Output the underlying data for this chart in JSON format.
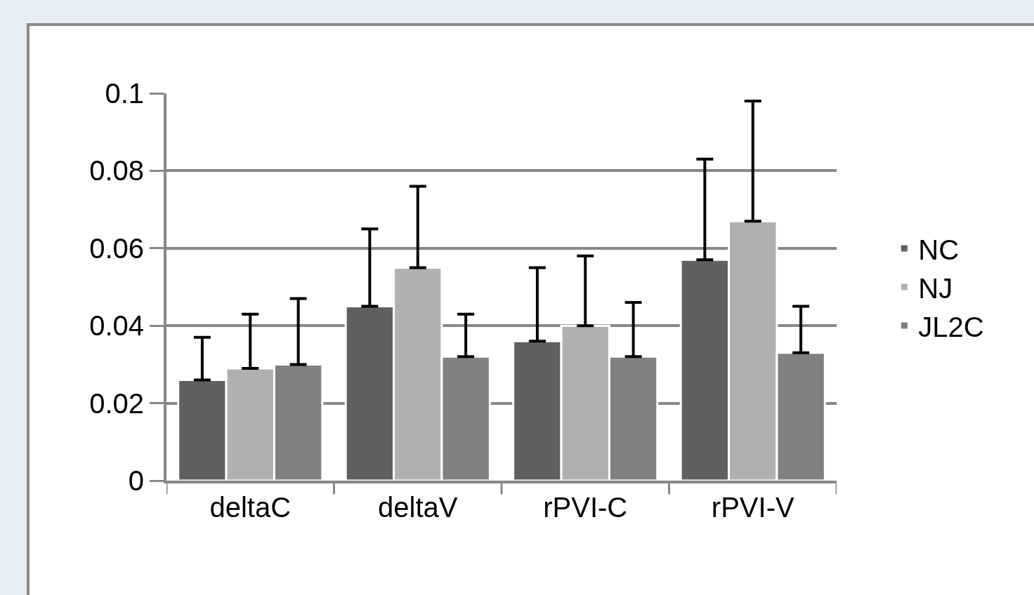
{
  "chart_data": {
    "type": "bar",
    "categories": [
      "deltaC",
      "deltaV",
      "rPVI-C",
      "rPVI-V"
    ],
    "series": [
      {
        "name": "NC",
        "color": "#606060",
        "values": [
          0.026,
          0.045,
          0.036,
          0.057
        ],
        "errors": [
          [
            0.026,
            0.037
          ],
          [
            0.045,
            0.065
          ],
          [
            0.036,
            0.055
          ],
          [
            0.057,
            0.083
          ]
        ]
      },
      {
        "name": "NJ",
        "color": "#b0b0b0",
        "values": [
          0.029,
          0.055,
          0.04,
          0.067
        ],
        "errors": [
          [
            0.029,
            0.043
          ],
          [
            0.055,
            0.076
          ],
          [
            0.04,
            0.058
          ],
          [
            0.067,
            0.098
          ]
        ]
      },
      {
        "name": "JL2C",
        "color": "#808080",
        "values": [
          0.03,
          0.032,
          0.032,
          0.033
        ],
        "errors": [
          [
            0.03,
            0.047
          ],
          [
            0.032,
            0.043
          ],
          [
            0.032,
            0.046
          ],
          [
            0.033,
            0.045
          ]
        ]
      }
    ],
    "ylim": [
      0,
      0.1
    ],
    "yticks": [
      0,
      0.02,
      0.04,
      0.06,
      0.08,
      0.1
    ],
    "grid": "y",
    "legend": "right"
  }
}
